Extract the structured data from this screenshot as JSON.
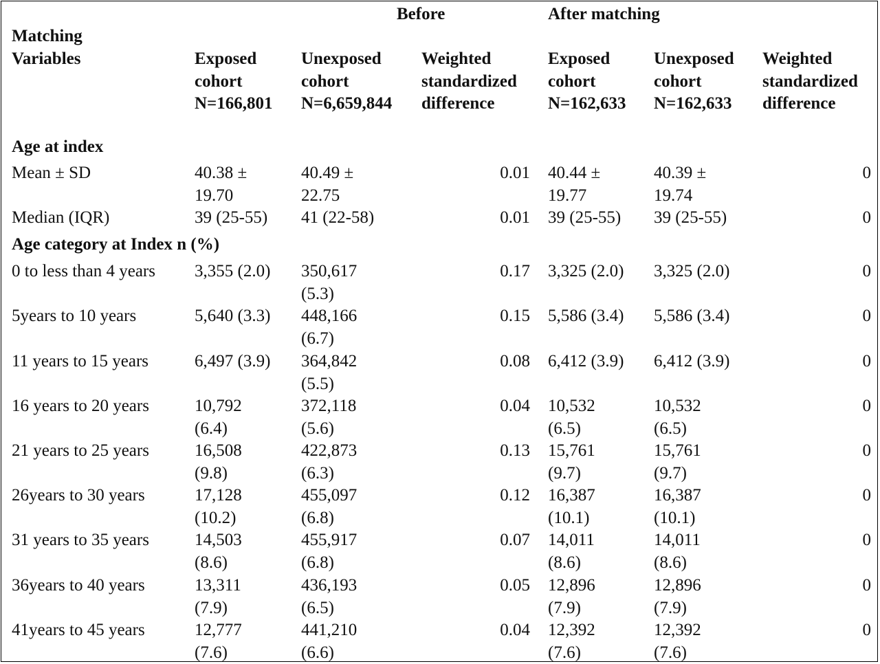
{
  "header": {
    "group_before": "Before",
    "group_after": "After matching",
    "variables": [
      "Matching",
      "Variables"
    ],
    "before": {
      "exposed": [
        "Exposed",
        "cohort",
        "N=166,801"
      ],
      "unexposed": [
        "Unexposed",
        "cohort",
        "N=6,659,844"
      ],
      "wsd": [
        "Weighted",
        "standardized",
        "difference"
      ]
    },
    "after": {
      "exposed": [
        "Exposed",
        "cohort",
        "N=162,633"
      ],
      "unexposed": [
        "Unexposed",
        "cohort",
        "N=162,633"
      ],
      "wsd": [
        "Weighted",
        "standardized",
        "difference"
      ]
    }
  },
  "sections": {
    "age_at_index": "Age at index",
    "age_category": "Age category at Index n (%)"
  },
  "rows": [
    {
      "label": "Mean ± SD",
      "be": [
        "40.38 ±",
        "19.70"
      ],
      "bu": [
        "40.49 ±",
        "22.75"
      ],
      "bw": "0.01",
      "ae": [
        "40.44 ±",
        "19.77"
      ],
      "au": [
        "40.39 ±",
        "19.74"
      ],
      "aw": "0"
    },
    {
      "label": "Median (IQR)",
      "be": [
        "39 (25-55)"
      ],
      "bu": [
        "41 (22-58)"
      ],
      "bw": "0.01",
      "ae": [
        "39 (25-55)"
      ],
      "au": [
        "39 (25-55)"
      ],
      "aw": "0"
    },
    {
      "label": "0 to less than 4 years",
      "be": [
        "3,355 (2.0)"
      ],
      "bu": [
        "350,617",
        "(5.3)"
      ],
      "bw": "0.17",
      "ae": [
        "3,325 (2.0)"
      ],
      "au": [
        "3,325 (2.0)"
      ],
      "aw": "0"
    },
    {
      "label": "5years to 10 years",
      "be": [
        "5,640 (3.3)"
      ],
      "bu": [
        "448,166",
        "(6.7)"
      ],
      "bw": "0.15",
      "ae": [
        "5,586 (3.4)"
      ],
      "au": [
        "5,586 (3.4)"
      ],
      "aw": "0"
    },
    {
      "label": "11 years to 15 years",
      "be": [
        "6,497 (3.9)"
      ],
      "bu": [
        "364,842",
        "(5.5)"
      ],
      "bw": "0.08",
      "ae": [
        "6,412 (3.9)"
      ],
      "au": [
        "6,412 (3.9)"
      ],
      "aw": "0"
    },
    {
      "label": "16 years to 20 years",
      "be": [
        "10,792",
        "(6.4)"
      ],
      "bu": [
        "372,118",
        "(5.6)"
      ],
      "bw": "0.04",
      "ae": [
        "10,532",
        "(6.5)"
      ],
      "au": [
        "10,532",
        "(6.5)"
      ],
      "aw": "0"
    },
    {
      "label": "21 years to 25 years",
      "be": [
        "16,508",
        "(9.8)"
      ],
      "bu": [
        "422,873",
        "(6.3)"
      ],
      "bw": "0.13",
      "ae": [
        "15,761",
        "(9.7)"
      ],
      "au": [
        "15,761",
        "(9.7)"
      ],
      "aw": "0"
    },
    {
      "label": "26years to 30 years",
      "be": [
        "17,128",
        "(10.2)"
      ],
      "bu": [
        "455,097",
        "(6.8)"
      ],
      "bw": "0.12",
      "ae": [
        "16,387",
        "(10.1)"
      ],
      "au": [
        "16,387",
        "(10.1)"
      ],
      "aw": "0"
    },
    {
      "label": "31 years to 35 years",
      "be": [
        "14,503",
        "(8.6)"
      ],
      "bu": [
        "455,917",
        "(6.8)"
      ],
      "bw": "0.07",
      "ae": [
        "14,011",
        "(8.6)"
      ],
      "au": [
        "14,011",
        "(8.6)"
      ],
      "aw": "0"
    },
    {
      "label": "36years to 40 years",
      "be": [
        "13,311",
        "(7.9)"
      ],
      "bu": [
        "436,193",
        "(6.5)"
      ],
      "bw": "0.05",
      "ae": [
        "12,896",
        "(7.9)"
      ],
      "au": [
        "12,896",
        "(7.9)"
      ],
      "aw": "0"
    },
    {
      "label": "41years to 45 years",
      "be": [
        "12,777",
        "(7.6)"
      ],
      "bu": [
        "441,210",
        "(6.6)"
      ],
      "bw": "0.04",
      "ae": [
        "12,392",
        "(7.6)"
      ],
      "au": [
        "12,392",
        "(7.6)"
      ],
      "aw": "0"
    }
  ]
}
